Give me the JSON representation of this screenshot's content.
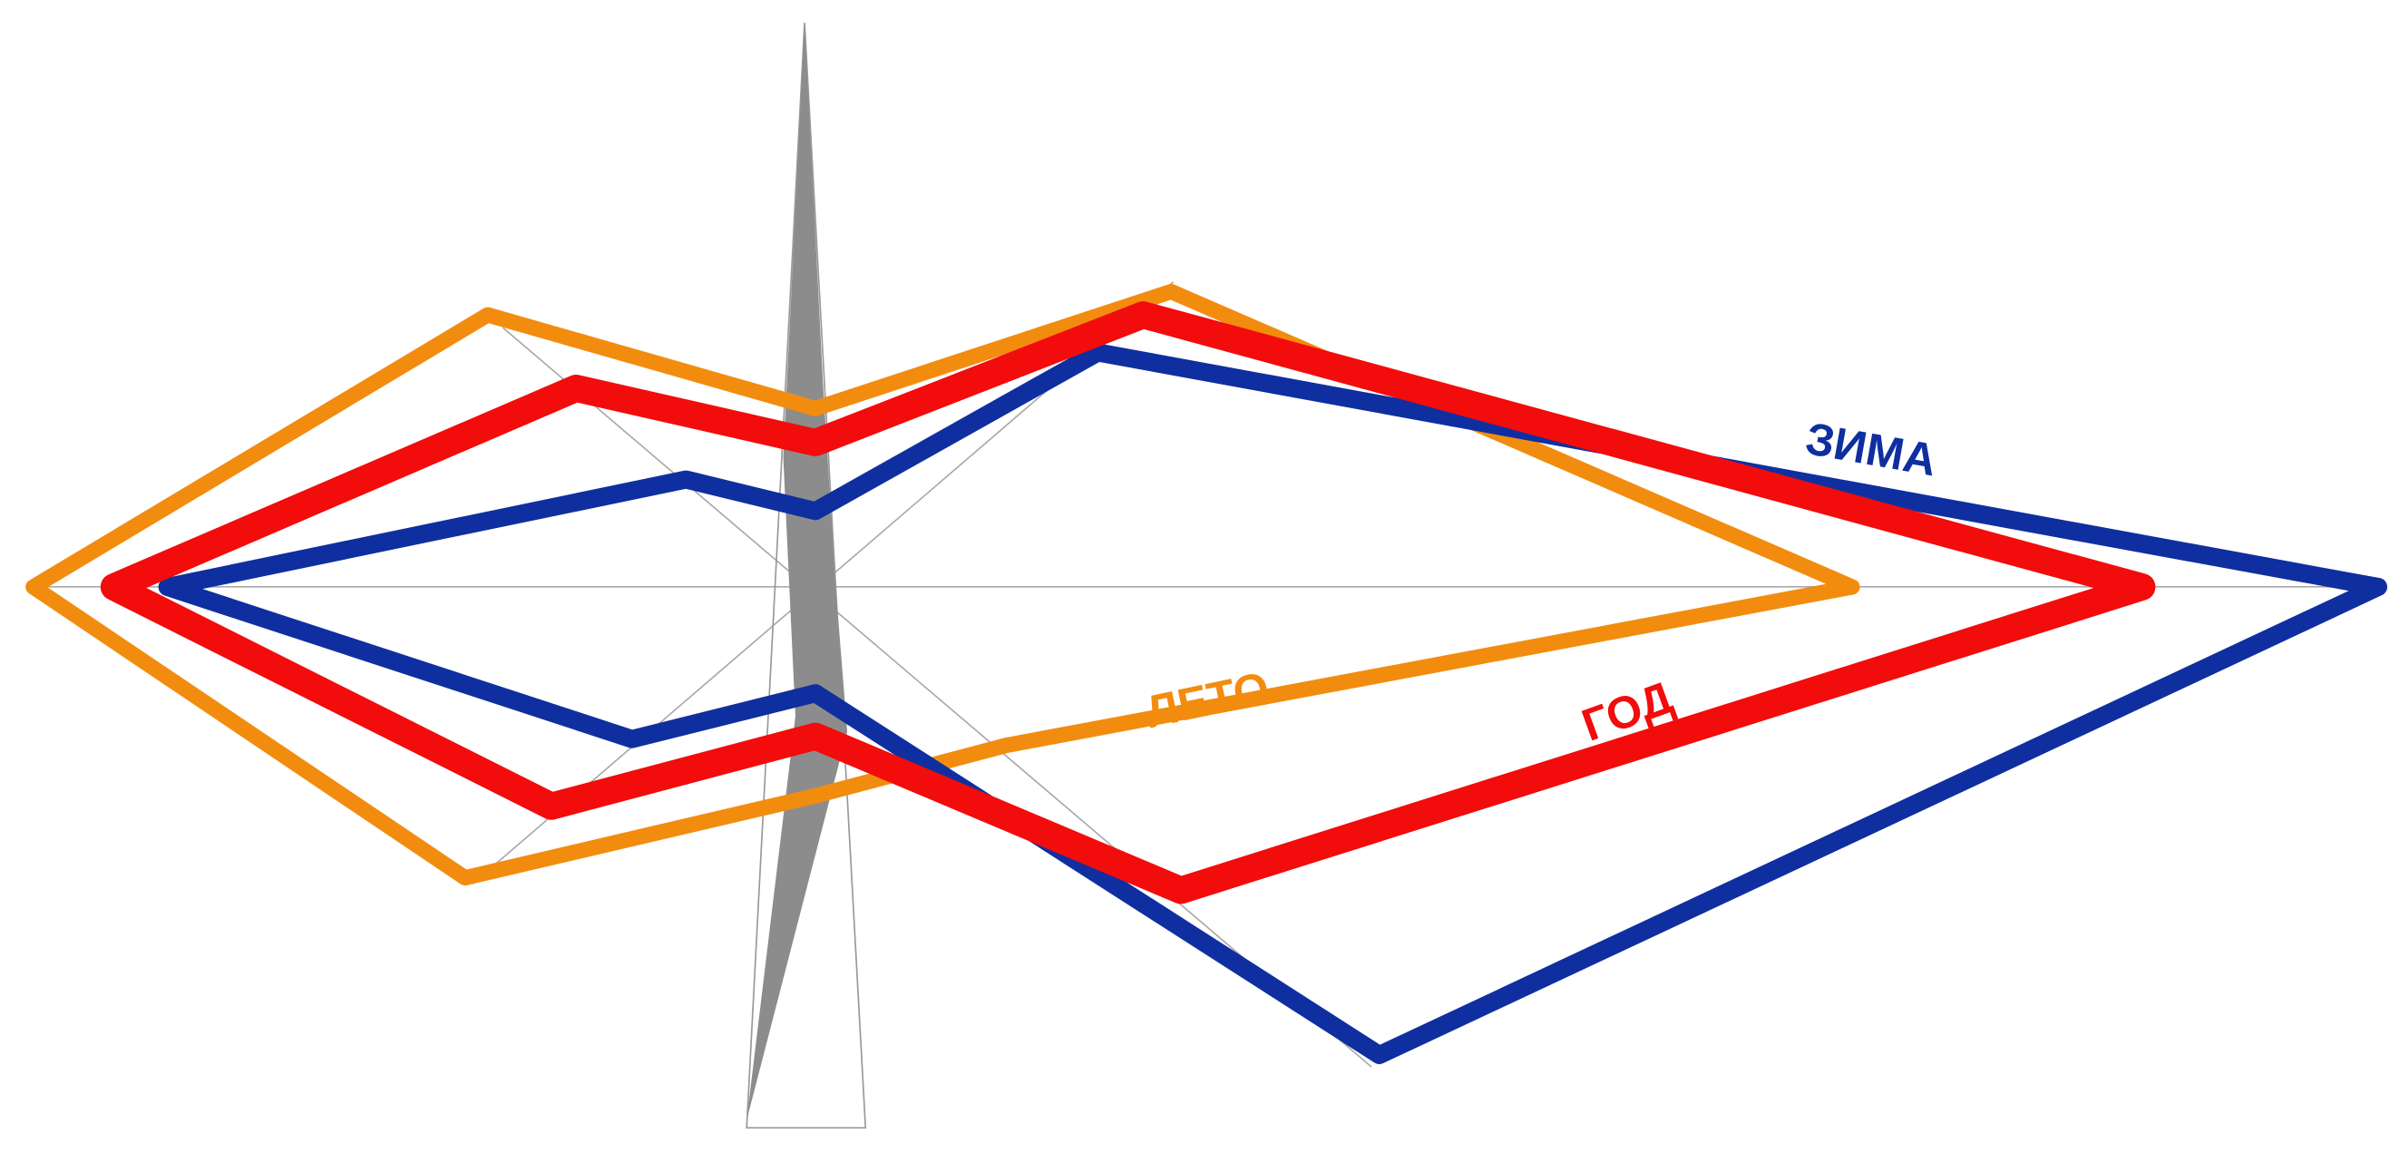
{
  "chart_data": {
    "type": "radar",
    "series": [
      {
        "name": "ЛЕТО",
        "color": "#f28c0f",
        "values": [
          680,
          330,
          141,
          304,
          513,
          325,
          165,
          177
        ]
      },
      {
        "name": "ЗИМА",
        "color": "#0f2fa0",
        "values": [
          1025,
          262,
          60,
          120,
          425,
          170,
          84,
          523
        ]
      },
      {
        "name": "ГОД",
        "color": "#f20c0c",
        "values": [
          870,
          304,
          114,
          222,
          460,
          245,
          118,
          339
        ]
      }
    ]
  }
}
